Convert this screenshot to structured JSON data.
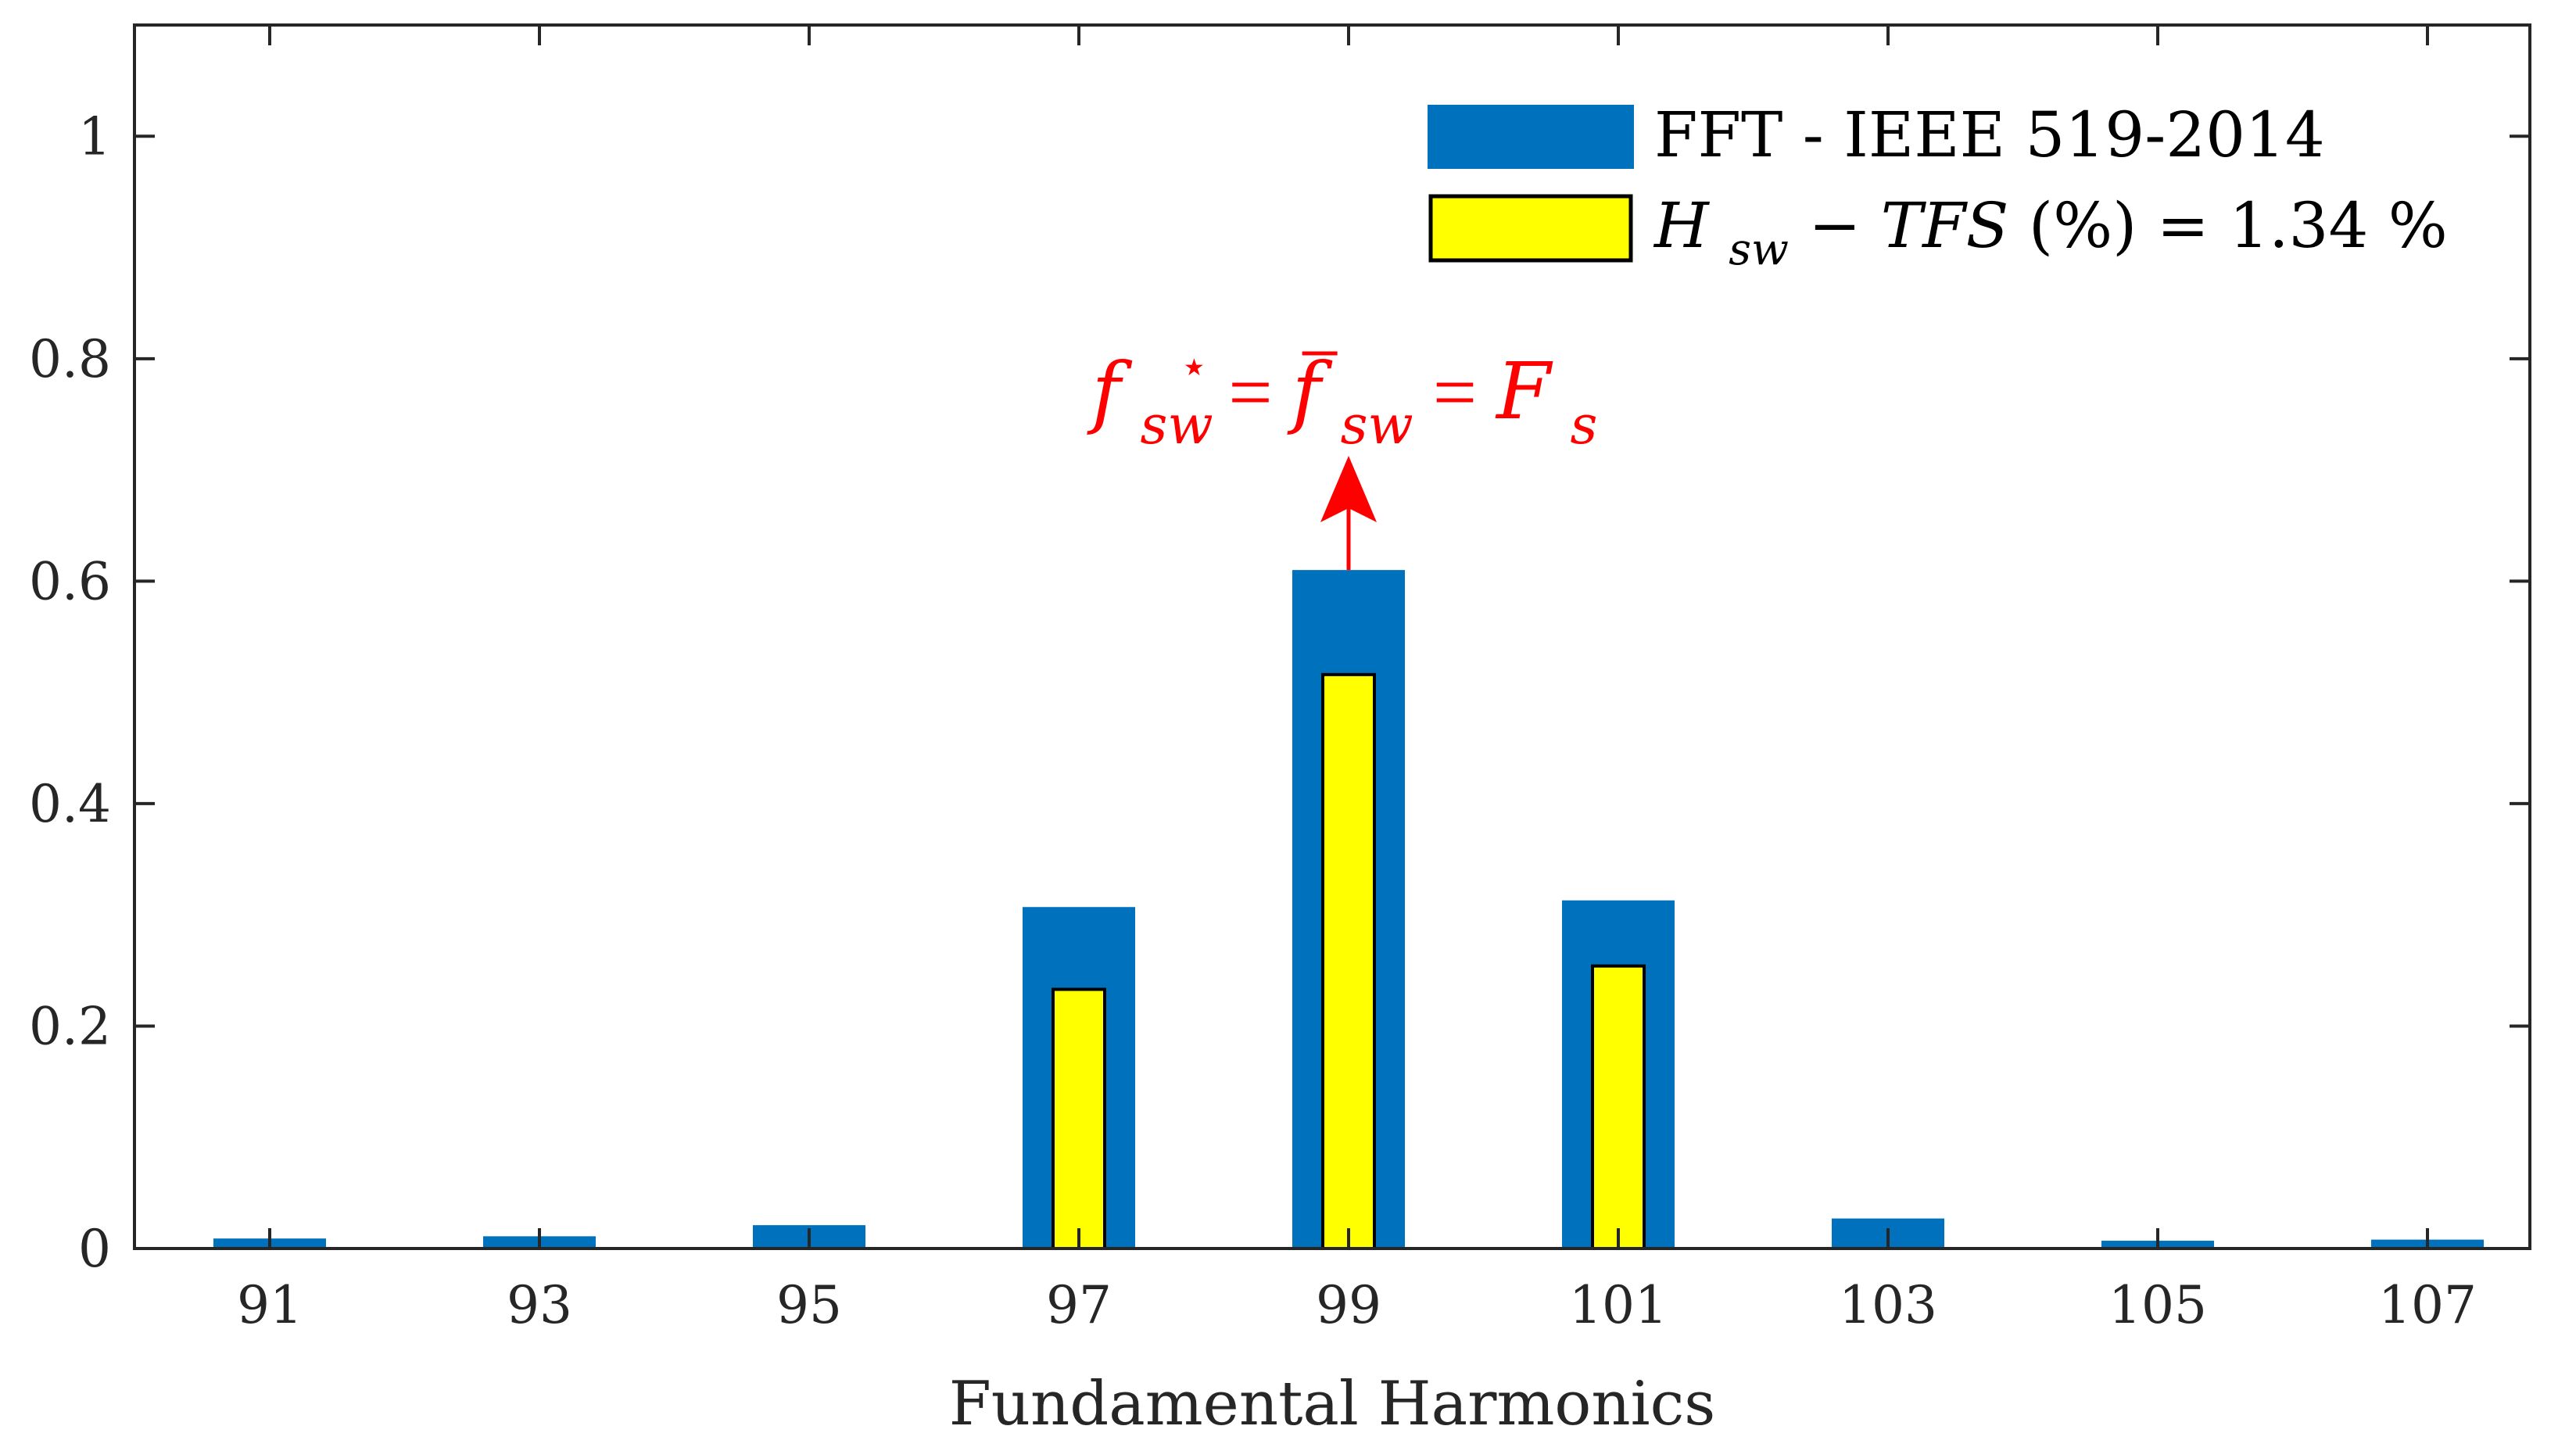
{
  "chart_data": {
    "type": "bar",
    "xlabel": "Fundamental Harmonics",
    "ylabel": "",
    "ylim": [
      0,
      1.1
    ],
    "yticks": [
      0,
      0.2,
      0.4,
      0.6,
      0.8,
      1
    ],
    "ytick_labels": [
      "0",
      "0.2",
      "0.4",
      "0.6",
      "0.8",
      "1"
    ],
    "categories": [
      "91",
      "93",
      "95",
      "97",
      "99",
      "101",
      "103",
      "105",
      "107"
    ],
    "series": [
      {
        "name": "FFT - IEEE 519-2014",
        "color": "#0072bd",
        "values": [
          0.009,
          0.011,
          0.021,
          0.307,
          0.61,
          0.313,
          0.027,
          0.007,
          0.008
        ]
      },
      {
        "name_parts": [
          "H",
          "sw",
          " − ",
          "TFS",
          "(%) = 1.34 %"
        ],
        "color": "#ffff00",
        "edge": "#000000",
        "values": [
          0,
          0,
          0,
          0.233,
          0.516,
          0.254,
          0,
          0,
          0
        ]
      }
    ],
    "legend": "top-right",
    "grid": false,
    "annotation": {
      "target_category": "99",
      "color": "#ff0000",
      "parts": [
        "f",
        "sw",
        "⋆",
        " = ",
        "f",
        "sw",
        " = ",
        "F",
        "s"
      ]
    }
  }
}
